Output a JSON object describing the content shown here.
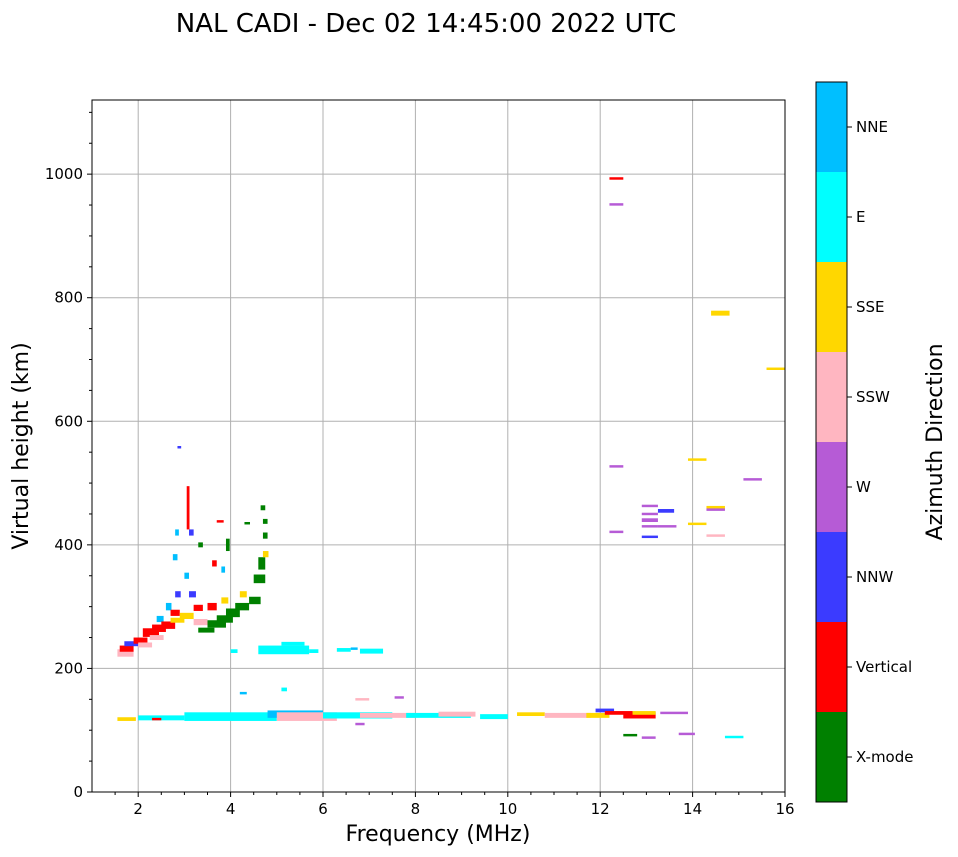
{
  "chart_data": {
    "type": "scatter",
    "title": "NAL CADI - Dec 02 14:45:00 2022 UTC",
    "xlabel": "Frequency (MHz)",
    "ylabel": "Virtual height (km)",
    "xlim": [
      1,
      16
    ],
    "ylim": [
      0,
      1120
    ],
    "xticks": [
      2,
      4,
      6,
      8,
      10,
      12,
      14,
      16
    ],
    "yticks": [
      0,
      200,
      400,
      600,
      800,
      1000
    ],
    "grid": true,
    "colorbar": {
      "label": "Azimuth Direction",
      "categories": [
        {
          "name": "X-mode",
          "color": "#008000"
        },
        {
          "name": "Vertical",
          "color": "#ff0000"
        },
        {
          "name": "NNW",
          "color": "#3b3bff"
        },
        {
          "name": "W",
          "color": "#b65bd6"
        },
        {
          "name": "SSW",
          "color": "#ffb6c1"
        },
        {
          "name": "SSE",
          "color": "#ffd700"
        },
        {
          "name": "E",
          "color": "#00ffff"
        },
        {
          "name": "NNE",
          "color": "#00bfff"
        }
      ]
    },
    "echoes": [
      {
        "x": 1.55,
        "y": 225,
        "w": 0.35,
        "h": 12,
        "dir": "SSW"
      },
      {
        "x": 1.6,
        "y": 232,
        "w": 0.3,
        "h": 10,
        "dir": "Vertical"
      },
      {
        "x": 1.7,
        "y": 240,
        "w": 0.3,
        "h": 8,
        "dir": "NNW"
      },
      {
        "x": 1.9,
        "y": 245,
        "w": 0.3,
        "h": 10,
        "dir": "Vertical"
      },
      {
        "x": 2.0,
        "y": 238,
        "w": 0.3,
        "h": 8,
        "dir": "SSW"
      },
      {
        "x": 2.1,
        "y": 258,
        "w": 0.35,
        "h": 14,
        "dir": "Vertical"
      },
      {
        "x": 2.3,
        "y": 265,
        "w": 0.3,
        "h": 12,
        "dir": "Vertical"
      },
      {
        "x": 2.25,
        "y": 250,
        "w": 0.3,
        "h": 8,
        "dir": "SSW"
      },
      {
        "x": 2.4,
        "y": 280,
        "w": 0.15,
        "h": 10,
        "dir": "NNE"
      },
      {
        "x": 2.5,
        "y": 270,
        "w": 0.3,
        "h": 12,
        "dir": "Vertical"
      },
      {
        "x": 2.6,
        "y": 300,
        "w": 0.12,
        "h": 12,
        "dir": "NNE"
      },
      {
        "x": 2.7,
        "y": 290,
        "w": 0.2,
        "h": 10,
        "dir": "Vertical"
      },
      {
        "x": 2.7,
        "y": 278,
        "w": 0.3,
        "h": 8,
        "dir": "SSE"
      },
      {
        "x": 2.8,
        "y": 320,
        "w": 0.12,
        "h": 10,
        "dir": "NNW"
      },
      {
        "x": 2.9,
        "y": 285,
        "w": 0.3,
        "h": 10,
        "dir": "SSE"
      },
      {
        "x": 3.0,
        "y": 350,
        "w": 0.1,
        "h": 10,
        "dir": "NNE"
      },
      {
        "x": 3.1,
        "y": 320,
        "w": 0.15,
        "h": 10,
        "dir": "NNW"
      },
      {
        "x": 3.2,
        "y": 298,
        "w": 0.2,
        "h": 10,
        "dir": "Vertical"
      },
      {
        "x": 3.2,
        "y": 275,
        "w": 0.3,
        "h": 10,
        "dir": "SSW"
      },
      {
        "x": 3.3,
        "y": 262,
        "w": 0.35,
        "h": 8,
        "dir": "X-mode"
      },
      {
        "x": 3.5,
        "y": 300,
        "w": 0.2,
        "h": 12,
        "dir": "Vertical"
      },
      {
        "x": 3.5,
        "y": 272,
        "w": 0.4,
        "h": 12,
        "dir": "X-mode"
      },
      {
        "x": 3.7,
        "y": 280,
        "w": 0.35,
        "h": 12,
        "dir": "X-mode"
      },
      {
        "x": 3.8,
        "y": 310,
        "w": 0.15,
        "h": 10,
        "dir": "SSE"
      },
      {
        "x": 3.9,
        "y": 290,
        "w": 0.3,
        "h": 14,
        "dir": "X-mode"
      },
      {
        "x": 4.1,
        "y": 300,
        "w": 0.3,
        "h": 12,
        "dir": "X-mode"
      },
      {
        "x": 4.2,
        "y": 320,
        "w": 0.15,
        "h": 10,
        "dir": "SSE"
      },
      {
        "x": 4.4,
        "y": 310,
        "w": 0.25,
        "h": 12,
        "dir": "X-mode"
      },
      {
        "x": 4.5,
        "y": 345,
        "w": 0.25,
        "h": 14,
        "dir": "X-mode"
      },
      {
        "x": 4.6,
        "y": 370,
        "w": 0.15,
        "h": 20,
        "dir": "X-mode"
      },
      {
        "x": 4.7,
        "y": 385,
        "w": 0.12,
        "h": 10,
        "dir": "SSE"
      },
      {
        "x": 4.7,
        "y": 415,
        "w": 0.1,
        "h": 10,
        "dir": "X-mode"
      },
      {
        "x": 4.7,
        "y": 438,
        "w": 0.1,
        "h": 8,
        "dir": "X-mode"
      },
      {
        "x": 4.65,
        "y": 460,
        "w": 0.1,
        "h": 8,
        "dir": "X-mode"
      },
      {
        "x": 2.75,
        "y": 380,
        "w": 0.1,
        "h": 10,
        "dir": "NNE"
      },
      {
        "x": 2.8,
        "y": 420,
        "w": 0.08,
        "h": 10,
        "dir": "NNE"
      },
      {
        "x": 2.85,
        "y": 558,
        "w": 0.08,
        "h": 4,
        "dir": "NNW"
      },
      {
        "x": 3.05,
        "y": 460,
        "w": 0.06,
        "h": 70,
        "dir": "Vertical"
      },
      {
        "x": 3.1,
        "y": 420,
        "w": 0.1,
        "h": 10,
        "dir": "NNW"
      },
      {
        "x": 3.3,
        "y": 400,
        "w": 0.1,
        "h": 8,
        "dir": "X-mode"
      },
      {
        "x": 3.6,
        "y": 370,
        "w": 0.1,
        "h": 10,
        "dir": "Vertical"
      },
      {
        "x": 3.7,
        "y": 438,
        "w": 0.15,
        "h": 4,
        "dir": "Vertical"
      },
      {
        "x": 3.8,
        "y": 360,
        "w": 0.08,
        "h": 10,
        "dir": "NNE"
      },
      {
        "x": 3.9,
        "y": 400,
        "w": 0.08,
        "h": 20,
        "dir": "X-mode"
      },
      {
        "x": 4.3,
        "y": 435,
        "w": 0.12,
        "h": 4,
        "dir": "X-mode"
      },
      {
        "x": 4.0,
        "y": 228,
        "w": 0.15,
        "h": 6,
        "dir": "E"
      },
      {
        "x": 4.6,
        "y": 230,
        "w": 1.1,
        "h": 14,
        "dir": "E"
      },
      {
        "x": 5.1,
        "y": 240,
        "w": 0.5,
        "h": 6,
        "dir": "E"
      },
      {
        "x": 5.7,
        "y": 228,
        "w": 0.2,
        "h": 6,
        "dir": "E"
      },
      {
        "x": 6.3,
        "y": 230,
        "w": 0.3,
        "h": 6,
        "dir": "E"
      },
      {
        "x": 6.8,
        "y": 228,
        "w": 0.5,
        "h": 8,
        "dir": "E"
      },
      {
        "x": 6.6,
        "y": 232,
        "w": 0.15,
        "h": 4,
        "dir": "NNE"
      },
      {
        "x": 1.55,
        "y": 118,
        "w": 0.4,
        "h": 6,
        "dir": "SSE"
      },
      {
        "x": 2.0,
        "y": 120,
        "w": 1.0,
        "h": 8,
        "dir": "E"
      },
      {
        "x": 3.0,
        "y": 122,
        "w": 2.0,
        "h": 14,
        "dir": "E"
      },
      {
        "x": 4.8,
        "y": 126,
        "w": 1.2,
        "h": 12,
        "dir": "NNE"
      },
      {
        "x": 5.0,
        "y": 122,
        "w": 1.3,
        "h": 14,
        "dir": "SSW"
      },
      {
        "x": 6.0,
        "y": 124,
        "w": 1.5,
        "h": 10,
        "dir": "E"
      },
      {
        "x": 6.8,
        "y": 124,
        "w": 1.2,
        "h": 8,
        "dir": "SSW"
      },
      {
        "x": 7.8,
        "y": 124,
        "w": 1.4,
        "h": 8,
        "dir": "E"
      },
      {
        "x": 8.5,
        "y": 126,
        "w": 0.8,
        "h": 8,
        "dir": "SSW"
      },
      {
        "x": 9.4,
        "y": 122,
        "w": 0.6,
        "h": 8,
        "dir": "E"
      },
      {
        "x": 10.2,
        "y": 126,
        "w": 0.6,
        "h": 6,
        "dir": "SSE"
      },
      {
        "x": 10.8,
        "y": 124,
        "w": 1.0,
        "h": 8,
        "dir": "SSW"
      },
      {
        "x": 11.7,
        "y": 124,
        "w": 0.5,
        "h": 8,
        "dir": "SSE"
      },
      {
        "x": 11.9,
        "y": 132,
        "w": 0.4,
        "h": 6,
        "dir": "NNW"
      },
      {
        "x": 12.1,
        "y": 128,
        "w": 0.6,
        "h": 6,
        "dir": "Vertical"
      },
      {
        "x": 12.5,
        "y": 124,
        "w": 0.7,
        "h": 10,
        "dir": "Vertical"
      },
      {
        "x": 12.7,
        "y": 128,
        "w": 0.5,
        "h": 6,
        "dir": "SSE"
      },
      {
        "x": 13.3,
        "y": 128,
        "w": 0.6,
        "h": 4,
        "dir": "W"
      },
      {
        "x": 4.2,
        "y": 160,
        "w": 0.15,
        "h": 4,
        "dir": "NNE"
      },
      {
        "x": 5.1,
        "y": 166,
        "w": 0.12,
        "h": 6,
        "dir": "E"
      },
      {
        "x": 6.7,
        "y": 150,
        "w": 0.3,
        "h": 4,
        "dir": "SSW"
      },
      {
        "x": 7.55,
        "y": 153,
        "w": 0.2,
        "h": 4,
        "dir": "W"
      },
      {
        "x": 6.7,
        "y": 110,
        "w": 0.2,
        "h": 4,
        "dir": "W"
      },
      {
        "x": 2.3,
        "y": 118,
        "w": 0.2,
        "h": 4,
        "dir": "Vertical"
      },
      {
        "x": 12.5,
        "y": 92,
        "w": 0.3,
        "h": 4,
        "dir": "X-mode"
      },
      {
        "x": 12.9,
        "y": 88,
        "w": 0.3,
        "h": 4,
        "dir": "W"
      },
      {
        "x": 13.7,
        "y": 94,
        "w": 0.35,
        "h": 4,
        "dir": "W"
      },
      {
        "x": 14.7,
        "y": 89,
        "w": 0.4,
        "h": 4,
        "dir": "E"
      },
      {
        "x": 12.2,
        "y": 993,
        "w": 0.3,
        "h": 4,
        "dir": "Vertical"
      },
      {
        "x": 12.2,
        "y": 951,
        "w": 0.3,
        "h": 4,
        "dir": "W"
      },
      {
        "x": 14.4,
        "y": 775,
        "w": 0.4,
        "h": 8,
        "dir": "SSE"
      },
      {
        "x": 15.6,
        "y": 685,
        "w": 0.4,
        "h": 4,
        "dir": "SSE"
      },
      {
        "x": 12.2,
        "y": 527,
        "w": 0.3,
        "h": 4,
        "dir": "W"
      },
      {
        "x": 12.2,
        "y": 421,
        "w": 0.3,
        "h": 4,
        "dir": "W"
      },
      {
        "x": 13.9,
        "y": 538,
        "w": 0.4,
        "h": 4,
        "dir": "SSE"
      },
      {
        "x": 15.1,
        "y": 506,
        "w": 0.4,
        "h": 4,
        "dir": "W"
      },
      {
        "x": 12.9,
        "y": 463,
        "w": 0.35,
        "h": 4,
        "dir": "W"
      },
      {
        "x": 12.9,
        "y": 450,
        "w": 0.35,
        "h": 4,
        "dir": "W"
      },
      {
        "x": 12.9,
        "y": 440,
        "w": 0.35,
        "h": 6,
        "dir": "W"
      },
      {
        "x": 12.9,
        "y": 430,
        "w": 0.35,
        "h": 4,
        "dir": "W"
      },
      {
        "x": 13.25,
        "y": 455,
        "w": 0.35,
        "h": 6,
        "dir": "NNW"
      },
      {
        "x": 13.25,
        "y": 430,
        "w": 0.4,
        "h": 4,
        "dir": "W"
      },
      {
        "x": 12.9,
        "y": 413,
        "w": 0.35,
        "h": 4,
        "dir": "NNW"
      },
      {
        "x": 13.9,
        "y": 434,
        "w": 0.4,
        "h": 4,
        "dir": "SSE"
      },
      {
        "x": 14.3,
        "y": 460,
        "w": 0.4,
        "h": 6,
        "dir": "SSE"
      },
      {
        "x": 14.3,
        "y": 457,
        "w": 0.4,
        "h": 4,
        "dir": "W"
      },
      {
        "x": 14.3,
        "y": 415,
        "w": 0.4,
        "h": 4,
        "dir": "SSW"
      }
    ]
  }
}
